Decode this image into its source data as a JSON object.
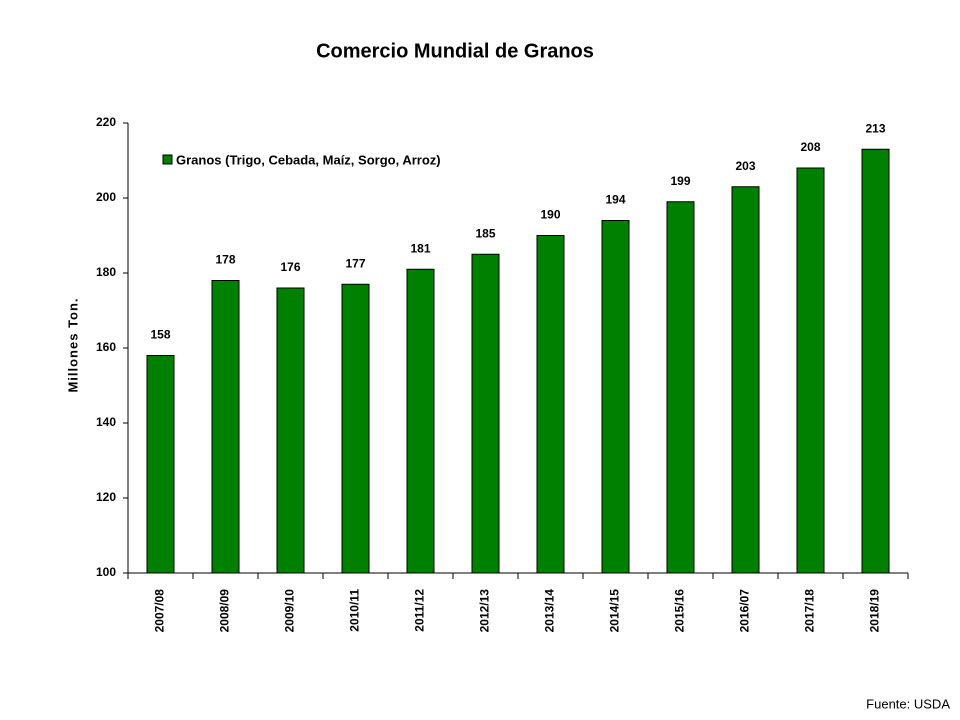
{
  "chart_data": {
    "type": "bar",
    "title": "Comercio Mundial de Granos",
    "y_label": "Millones Ton.",
    "source": "Fuente: USDA",
    "categories": [
      "2007/08",
      "2008/09",
      "2009/10",
      "2010/11",
      "2011/12",
      "2012/13",
      "2013/14",
      "2014/15",
      "2015/16",
      "2016/07",
      "2017/18",
      "2018/19"
    ],
    "series": [
      {
        "name": "Granos (Trigo, Cebada, Maíz, Sorgo, Arroz)",
        "color": "#008000",
        "values": [
          158,
          178,
          176,
          177,
          181,
          185,
          190,
          194,
          199,
          203,
          208,
          213
        ]
      }
    ],
    "ylim": [
      100,
      220
    ],
    "yticks": [
      100,
      120,
      140,
      160,
      180,
      200,
      220
    ],
    "grid": false,
    "legend": "top-left"
  }
}
